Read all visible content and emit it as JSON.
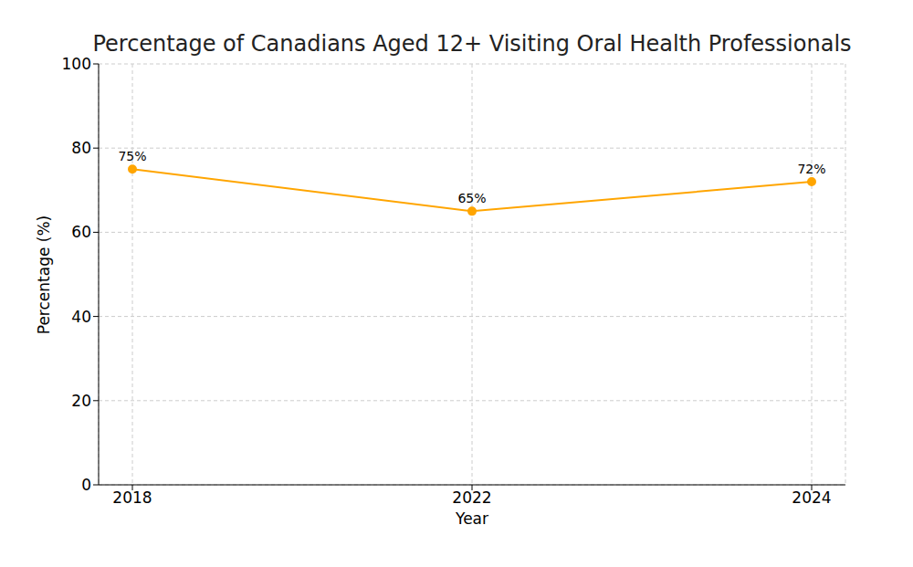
{
  "chart_data": {
    "type": "line",
    "title": "Percentage of Canadians Aged 12+ Visiting Oral Health Professionals",
    "x_label": "Year",
    "y_label": "Percentage (%)",
    "categories": [
      "2018",
      "2022",
      "2024"
    ],
    "values": [
      75,
      65,
      72
    ],
    "value_labels": [
      "75%",
      "65%",
      "72%"
    ],
    "data_labels": true,
    "color": "#ffa500",
    "marker": "circle",
    "line_style": "solid",
    "ylim": [
      0,
      100
    ],
    "yticks": [
      0,
      20,
      40,
      60,
      80,
      100
    ],
    "grid": true
  }
}
